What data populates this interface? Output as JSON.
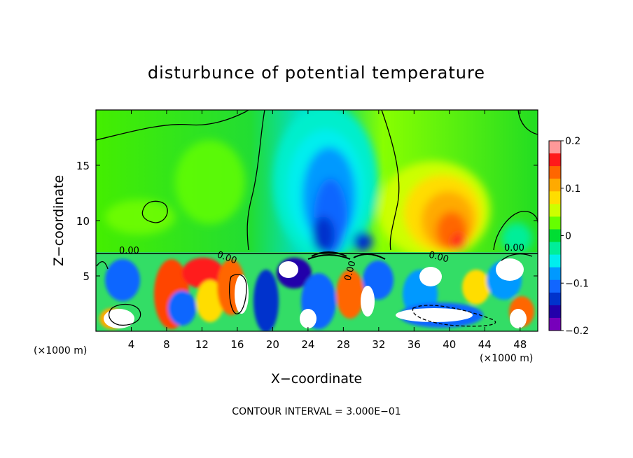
{
  "chart_data": {
    "type": "heatmap",
    "title": "disturbunce of potential temperature",
    "xlabel": "X−coordinate",
    "ylabel": "Z−coordinate",
    "x_unit_left": "(×1000 m)",
    "x_unit_right": "(×1000 m)",
    "xlim": [
      0,
      50
    ],
    "ylim": [
      0,
      20
    ],
    "x_ticks": [
      4,
      8,
      12,
      16,
      20,
      24,
      28,
      32,
      36,
      40,
      44,
      48
    ],
    "x_tick_labels": [
      "4",
      "8",
      "12",
      "16",
      "20",
      "24",
      "28",
      "32",
      "36",
      "40",
      "44",
      "48"
    ],
    "y_ticks": [
      5,
      10,
      15
    ],
    "y_tick_labels": [
      "5",
      "10",
      "15"
    ],
    "colorbar": {
      "range": [
        -0.2,
        0.2
      ],
      "ticks": [
        0.2,
        0.1,
        0,
        -0.1,
        -0.2
      ],
      "tick_labels": [
        "0.2",
        "0.1",
        "0",
        "−0.1",
        "−0.2"
      ],
      "colors": [
        "#ff9999",
        "#ff1a1a",
        "#ff6600",
        "#ffaa00",
        "#ffdd00",
        "#ccff00",
        "#66ff00",
        "#00dd33",
        "#00ee99",
        "#00eeee",
        "#0099ff",
        "#1166ff",
        "#0033cc",
        "#2200aa",
        "#7700bb"
      ]
    },
    "contour_labels": [
      "0.00",
      "0.00",
      "0.00",
      "0.00",
      "0.00"
    ],
    "footnote": "CONTOUR INTERVAL = 3.000E−01"
  }
}
